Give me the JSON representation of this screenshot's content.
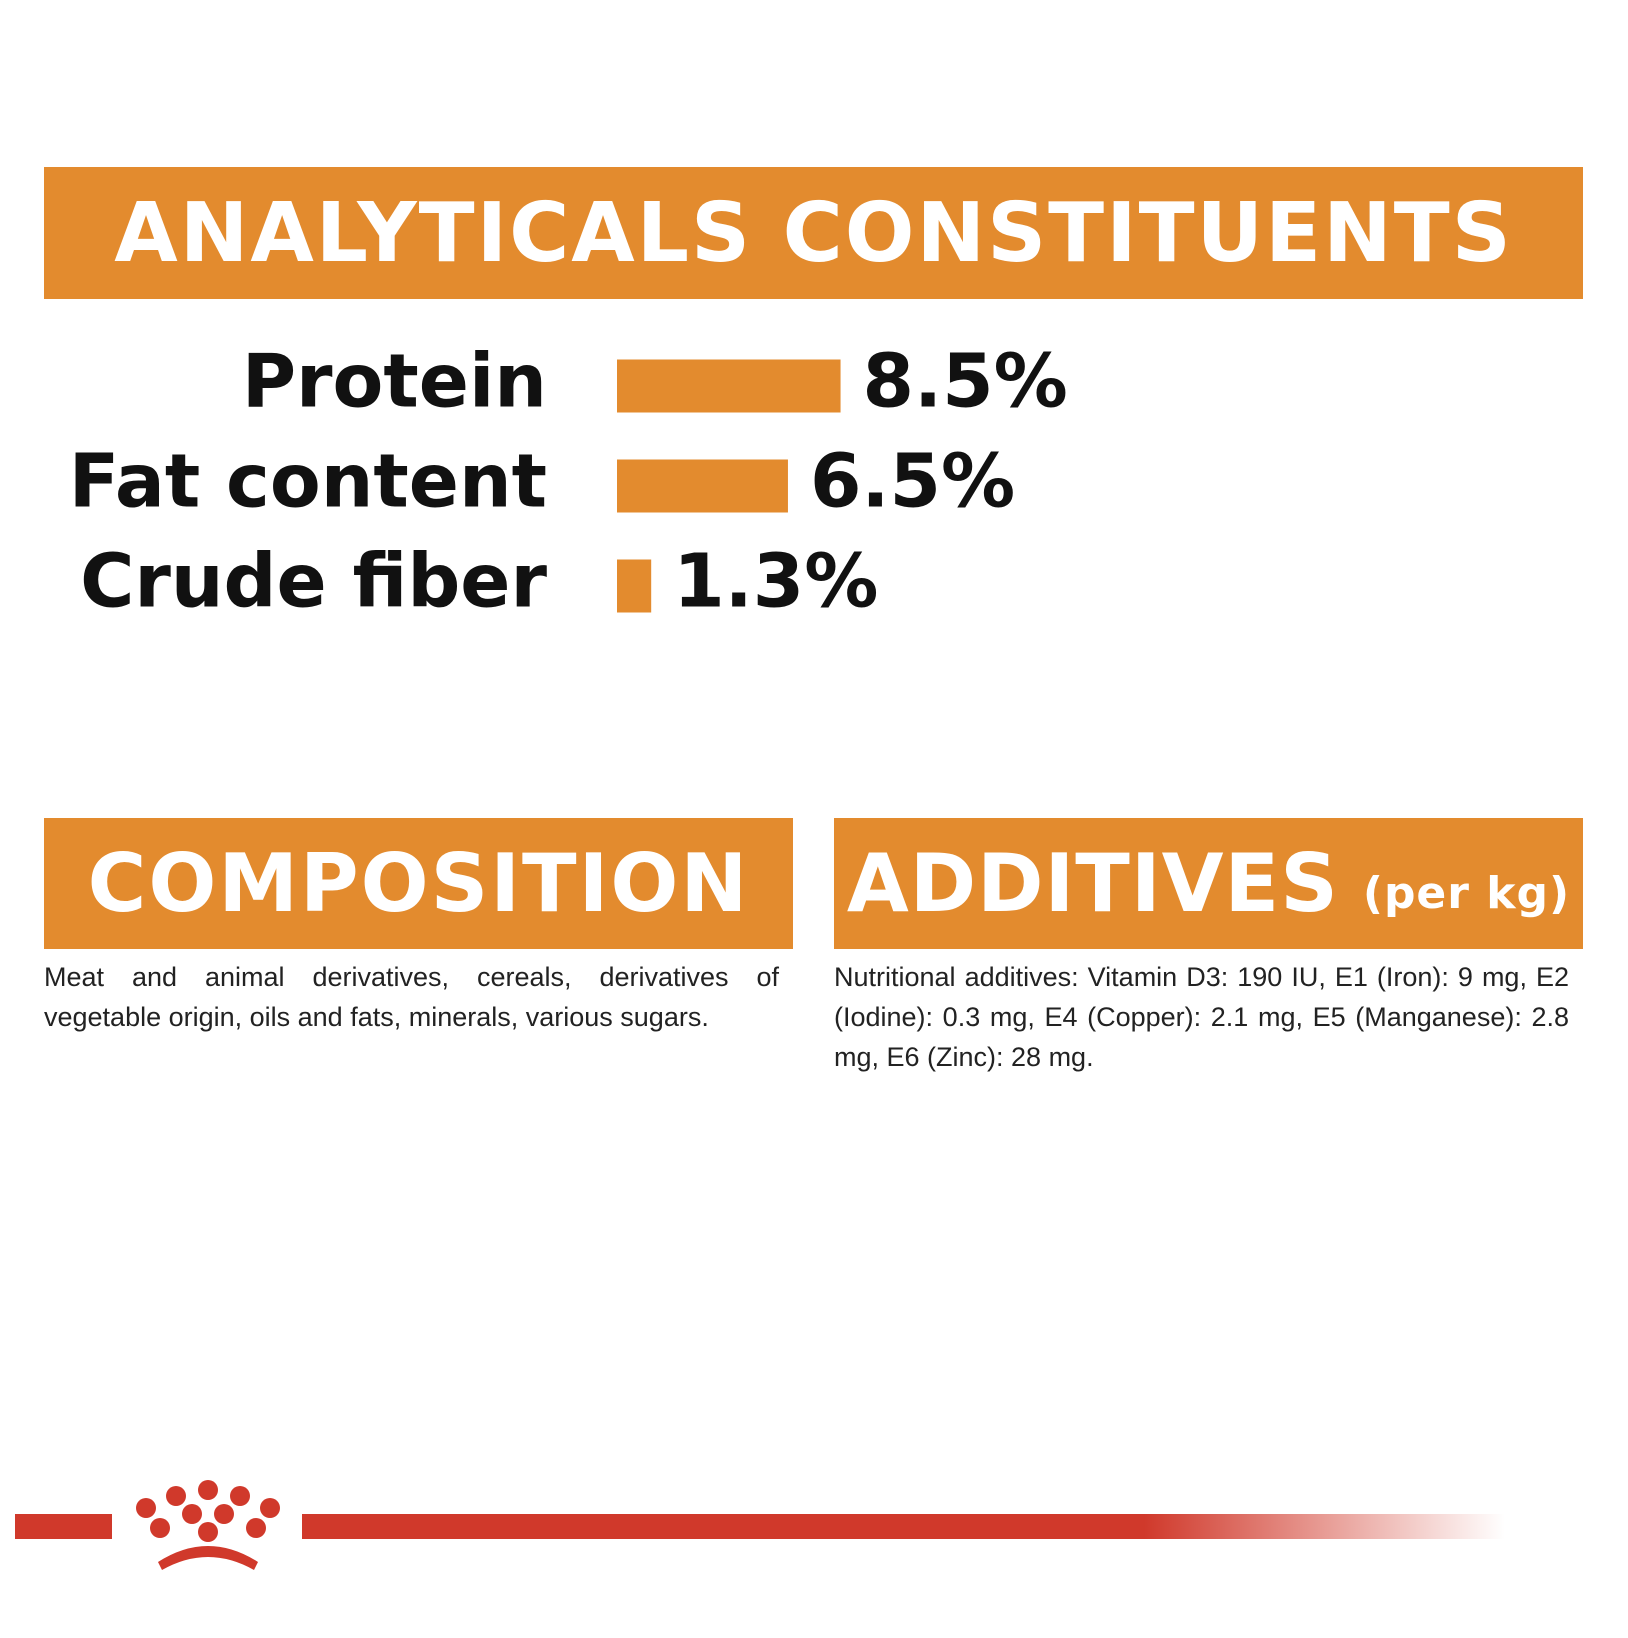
{
  "chart_data": {
    "type": "bar",
    "orientation": "horizontal",
    "title": "ANALYTICALS CONSTITUENTS",
    "categories": [
      "Protein",
      "Fat content",
      "Crude fiber"
    ],
    "values": [
      8.5,
      6.5,
      1.3
    ],
    "value_labels": [
      "8.5%",
      "6.5%",
      "1.3%"
    ],
    "color": "#e38b2e"
  },
  "composition": {
    "title": "COMPOSITION",
    "text": "Meat and animal derivatives, cereals, derivatives of vegetable origin, oils and fats, minerals, various sugars."
  },
  "additives": {
    "title": "ADDITIVES",
    "unit": "(per kg)",
    "text": "Nutritional additives: Vitamin D3: 190 IU, E1 (Iron): 9 mg, E2 (Iodine): 0.3 mg, E4 (Copper): 2.1 mg, E5 (Manganese): 2.8 mg, E6 (Zinc): 28 mg."
  }
}
